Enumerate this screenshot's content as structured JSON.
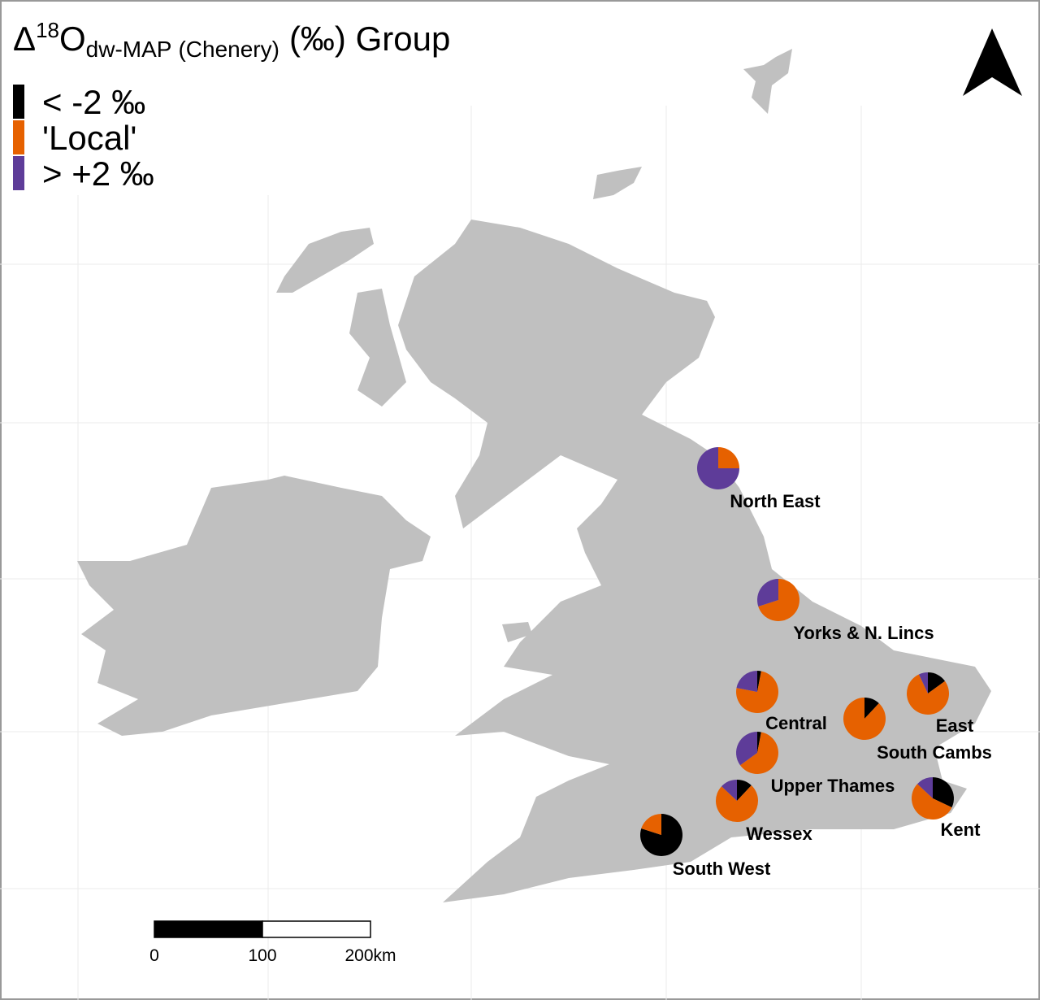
{
  "title": {
    "delta": "Δ",
    "sup": "18",
    "o": "O",
    "sub": "dw-MAP",
    "sub2": "(Chenery)",
    "rest": "(‰) Group"
  },
  "legend": [
    {
      "label": "< -2 ‰",
      "color": "#000000"
    },
    {
      "label": "'Local'",
      "color": "#e66100"
    },
    {
      "label": "> +2 ‰",
      "color": "#5e3c99"
    }
  ],
  "regions": [
    {
      "name": "North East",
      "shares": [
        0,
        25,
        75
      ]
    },
    {
      "name": "Yorks & N. Lincs",
      "shares": [
        0,
        70,
        30
      ]
    },
    {
      "name": "Central",
      "shares": [
        3,
        75,
        22
      ]
    },
    {
      "name": "Upper Thames",
      "shares": [
        3,
        62,
        35
      ]
    },
    {
      "name": "Wessex",
      "shares": [
        12,
        75,
        13
      ]
    },
    {
      "name": "South West",
      "shares": [
        80,
        20,
        0
      ]
    },
    {
      "name": "South Cambs",
      "shares": [
        12,
        88,
        0
      ]
    },
    {
      "name": "East",
      "shares": [
        15,
        78,
        7
      ]
    },
    {
      "name": "Kent",
      "shares": [
        32,
        55,
        13
      ]
    }
  ],
  "scale_bar": {
    "labels": [
      "0",
      "100",
      "200km"
    ]
  }
}
